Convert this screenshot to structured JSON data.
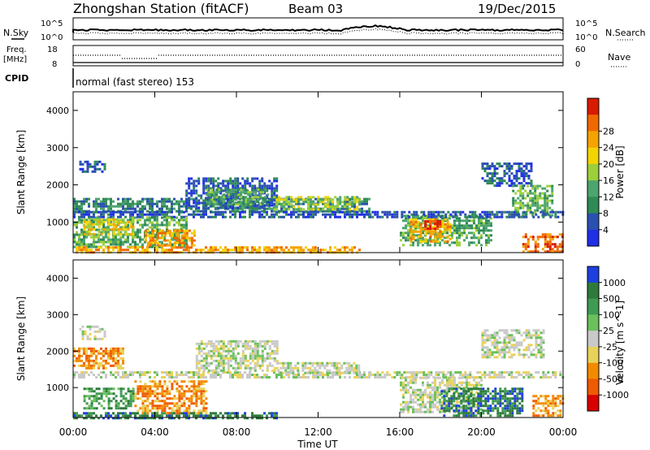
{
  "header": {
    "title": "Zhongshan Station (fitACF)",
    "beam": "Beam 03",
    "date": "19/Dec/2015"
  },
  "top_panels": {
    "nsky_label": "N.Sky",
    "nsearch_label": "N.Search",
    "exp_label": "10^5",
    "zero_label": "10^0",
    "freq_label_1": "Freq.",
    "freq_label_2": "[MHz]",
    "freq_ticks": [
      "18",
      "8"
    ],
    "nave_label": "Nave",
    "nave_ticks": [
      "60",
      "0"
    ],
    "cpid_label": "CPID",
    "cpid_value": "normal (fast stereo) 153"
  },
  "colors": {
    "power": [
      "#1f2fe6",
      "#2a50b0",
      "#2f8a55",
      "#4da46e",
      "#9ccf3a",
      "#f2d400",
      "#f5a300",
      "#f06800",
      "#d81a00"
    ],
    "velocity": [
      "#1d3fe0",
      "#2d7a3c",
      "#3f9a52",
      "#6ac05a",
      "#c9c9c9",
      "#e9d25a",
      "#f28a00",
      "#ee5a00",
      "#d80000"
    ]
  },
  "chart_data": [
    {
      "type": "heatmap",
      "name": "power",
      "ylabel": "Slant Range [km]",
      "xlabel": "Time UT",
      "x_ticks": [
        "00:00",
        "04:00",
        "08:00",
        "12:00",
        "16:00",
        "20:00",
        "00:00"
      ],
      "y_ticks": [
        "1000",
        "2000",
        "3000",
        "4000"
      ],
      "colorbar_label": "Power [dB]",
      "colorbar_ticks": [
        "4",
        "8",
        "12",
        "16",
        "20",
        "24",
        "28"
      ],
      "xlim_hours": [
        0,
        24
      ],
      "ylim_km": [
        180,
        4500
      ],
      "regions": [
        {
          "t0": 0.0,
          "t1": 14.5,
          "r0": 1300,
          "r1": 1650,
          "level": 2
        },
        {
          "t0": 0.0,
          "t1": 14.5,
          "r0": 1150,
          "r1": 1300,
          "level": 1
        },
        {
          "t0": 0.0,
          "t1": 5.5,
          "r0": 300,
          "r1": 1150,
          "level": 3
        },
        {
          "t0": 0.5,
          "t1": 3.0,
          "r0": 700,
          "r1": 1100,
          "level": 5
        },
        {
          "t0": 3.5,
          "t1": 6.0,
          "r0": 400,
          "r1": 800,
          "level": 6
        },
        {
          "t0": 5.5,
          "t1": 10.0,
          "r0": 1400,
          "r1": 2200,
          "level": 1
        },
        {
          "t0": 6.5,
          "t1": 9.5,
          "r0": 1500,
          "r1": 1900,
          "level": 3
        },
        {
          "t0": 9.8,
          "t1": 14.0,
          "r0": 1350,
          "r1": 1700,
          "level": 4
        },
        {
          "t0": 0.0,
          "t1": 14.0,
          "r0": 180,
          "r1": 350,
          "level": 6
        },
        {
          "t0": 16.0,
          "t1": 20.5,
          "r0": 400,
          "r1": 1200,
          "level": 3
        },
        {
          "t0": 16.5,
          "t1": 18.5,
          "r0": 500,
          "r1": 1100,
          "level": 6
        },
        {
          "t0": 17.2,
          "t1": 18.0,
          "r0": 800,
          "r1": 1050,
          "level": 8
        },
        {
          "t0": 20.0,
          "t1": 22.5,
          "r0": 2000,
          "r1": 2600,
          "level": 1
        },
        {
          "t0": 21.5,
          "t1": 23.5,
          "r0": 1200,
          "r1": 2000,
          "level": 3
        },
        {
          "t0": 22.0,
          "t1": 24.0,
          "r0": 180,
          "r1": 700,
          "level": 7
        },
        {
          "t0": 14.5,
          "t1": 24.0,
          "r0": 1150,
          "r1": 1300,
          "level": 1
        },
        {
          "t0": 0.3,
          "t1": 1.5,
          "r0": 2350,
          "r1": 2650,
          "level": 1
        }
      ]
    },
    {
      "type": "heatmap",
      "name": "velocity",
      "ylabel": "Slant Range [km]",
      "xlabel": "Time UT",
      "x_ticks": [
        "00:00",
        "04:00",
        "08:00",
        "12:00",
        "16:00",
        "20:00",
        "00:00"
      ],
      "y_ticks": [
        "1000",
        "2000",
        "3000",
        "4000"
      ],
      "colorbar_label": "Velocity [m s^-1]",
      "colorbar_ticks": [
        "1000",
        "500",
        "100",
        "25",
        "-25",
        "-100",
        "-500",
        "-1000"
      ],
      "xlim_hours": [
        0,
        24
      ],
      "ylim_km": [
        180,
        4500
      ],
      "regions": [
        {
          "t0": 0.0,
          "t1": 14.5,
          "r0": 1250,
          "r1": 1450,
          "level": 4
        },
        {
          "t0": 6.0,
          "t1": 10.0,
          "r0": 1450,
          "r1": 2300,
          "level": 4
        },
        {
          "t0": 10.0,
          "t1": 14.0,
          "r0": 1400,
          "r1": 1700,
          "level": 4
        },
        {
          "t0": 0.0,
          "t1": 2.5,
          "r0": 1500,
          "r1": 2100,
          "level": 6
        },
        {
          "t0": 0.5,
          "t1": 3.0,
          "r0": 400,
          "r1": 1000,
          "level": 2
        },
        {
          "t0": 3.0,
          "t1": 6.5,
          "r0": 300,
          "r1": 1200,
          "level": 6
        },
        {
          "t0": 0.0,
          "t1": 10.0,
          "r0": 180,
          "r1": 330,
          "level": 1
        },
        {
          "t0": 16.0,
          "t1": 20.0,
          "r0": 300,
          "r1": 1300,
          "level": 4
        },
        {
          "t0": 18.0,
          "t1": 22.0,
          "r0": 200,
          "r1": 1000,
          "level": 1
        },
        {
          "t0": 20.0,
          "t1": 23.0,
          "r0": 1800,
          "r1": 2600,
          "level": 4
        },
        {
          "t0": 22.5,
          "t1": 24.0,
          "r0": 200,
          "r1": 800,
          "level": 6
        },
        {
          "t0": 14.5,
          "t1": 24.0,
          "r0": 1250,
          "r1": 1450,
          "level": 4
        },
        {
          "t0": 0.3,
          "t1": 1.5,
          "r0": 2350,
          "r1": 2700,
          "level": 4
        }
      ]
    }
  ]
}
